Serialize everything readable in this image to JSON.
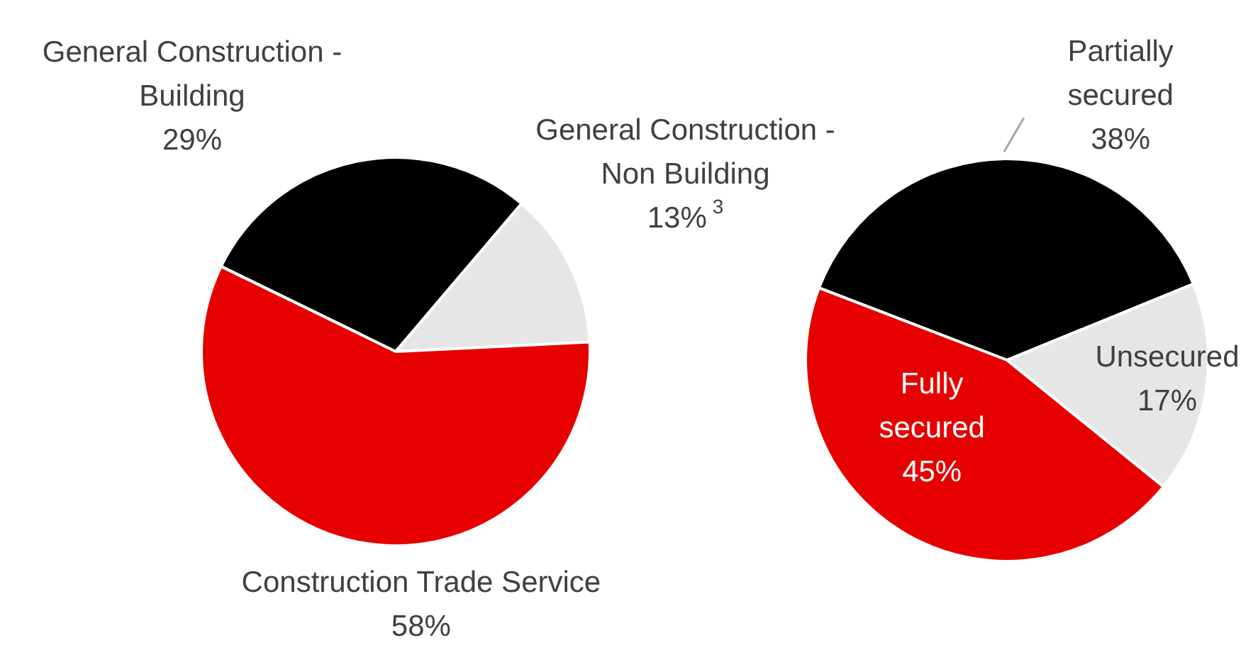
{
  "chart_data": [
    {
      "type": "pie",
      "categories": [
        "General Construction - Building",
        "General Construction - Non Building",
        "Construction Trade Service"
      ],
      "values": [
        29,
        13,
        58
      ],
      "colors": [
        "#000000",
        "#e6e6e6",
        "#e60000"
      ],
      "value_labels": [
        "29%",
        "13%$^{3}$",
        "58%"
      ],
      "legend": false
    },
    {
      "type": "pie",
      "categories": [
        "Partially secured",
        "Unsecured",
        "Fully secured"
      ],
      "values": [
        38,
        17,
        45
      ],
      "colors": [
        "#000000",
        "#e6e6e6",
        "#e60000"
      ],
      "value_labels": [
        "38%",
        "17%",
        "45%"
      ],
      "legend": false
    }
  ]
}
